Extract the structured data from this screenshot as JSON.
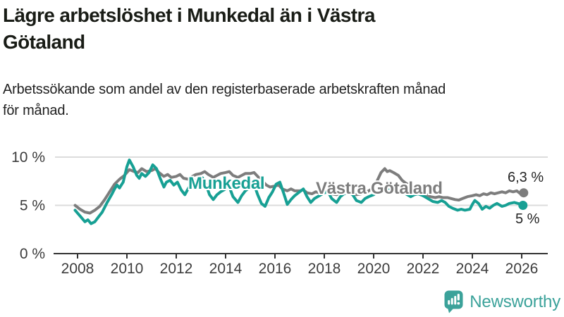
{
  "header": {
    "title_line1": "Lägre arbetslöshet i Munkedal än i Västra",
    "title_line2": "Götaland",
    "subtitle_line1": "Arbetssökande som andel av den registerbaserade arbetskraften månad",
    "subtitle_line2": "för månad."
  },
  "colors": {
    "munkedal": "#17a094",
    "vastra_gotaland": "#7d7d7d",
    "grid": "#dcdcdc",
    "axis": "#333333",
    "tick_text": "#3c3c3c",
    "title_text": "#191c16",
    "logo_teal": "#3ba29a",
    "background": "#ffffff"
  },
  "chart_data": {
    "type": "line",
    "grid": "horizontal",
    "legend": "inline-labels",
    "x_axis": {
      "ticks": [
        2008,
        2010,
        2012,
        2014,
        2016,
        2018,
        2020,
        2022,
        2024,
        2026
      ],
      "range": [
        2007.1,
        2027.1
      ]
    },
    "y_axis": {
      "ticks": [
        0,
        5,
        10
      ],
      "tick_labels": [
        "0 %",
        "5 %",
        "10 %"
      ],
      "range": [
        0,
        10.7
      ],
      "unit": "%"
    },
    "series": [
      {
        "id": "vastra-gotaland",
        "name": "Västra Götaland",
        "color": "#7d7d7d",
        "end_label": "6,3 %",
        "points": [
          [
            2007.9,
            5.0
          ],
          [
            2008.1,
            4.6
          ],
          [
            2008.3,
            4.3
          ],
          [
            2008.5,
            4.2
          ],
          [
            2008.7,
            4.5
          ],
          [
            2008.9,
            4.9
          ],
          [
            2009.1,
            5.6
          ],
          [
            2009.3,
            6.4
          ],
          [
            2009.5,
            7.2
          ],
          [
            2009.7,
            7.7
          ],
          [
            2009.9,
            8.1
          ],
          [
            2010.1,
            8.7
          ],
          [
            2010.3,
            8.5
          ],
          [
            2010.45,
            8.4
          ],
          [
            2010.6,
            8.8
          ],
          [
            2010.8,
            8.5
          ],
          [
            2011.0,
            8.6
          ],
          [
            2011.15,
            8.8
          ],
          [
            2011.3,
            8.4
          ],
          [
            2011.5,
            8.0
          ],
          [
            2011.65,
            8.2
          ],
          [
            2011.8,
            7.9
          ],
          [
            2012.0,
            8.0
          ],
          [
            2012.15,
            8.2
          ],
          [
            2012.3,
            7.8
          ],
          [
            2012.5,
            7.7
          ],
          [
            2012.65,
            8.0
          ],
          [
            2012.8,
            8.2
          ],
          [
            2013.0,
            8.3
          ],
          [
            2013.15,
            8.5
          ],
          [
            2013.3,
            8.2
          ],
          [
            2013.5,
            7.9
          ],
          [
            2013.65,
            8.1
          ],
          [
            2013.8,
            8.3
          ],
          [
            2014.0,
            8.4
          ],
          [
            2014.15,
            8.5
          ],
          [
            2014.3,
            8.1
          ],
          [
            2014.5,
            7.9
          ],
          [
            2014.65,
            8.1
          ],
          [
            2014.8,
            8.3
          ],
          [
            2015.0,
            8.3
          ],
          [
            2015.15,
            8.4
          ],
          [
            2015.3,
            8.0
          ],
          [
            2015.5,
            7.5
          ],
          [
            2015.65,
            7.1
          ],
          [
            2015.8,
            6.9
          ],
          [
            2016.0,
            7.0
          ],
          [
            2016.15,
            7.1
          ],
          [
            2016.3,
            6.7
          ],
          [
            2016.5,
            6.5
          ],
          [
            2016.65,
            6.7
          ],
          [
            2016.8,
            6.5
          ],
          [
            2017.0,
            6.5
          ],
          [
            2017.15,
            6.6
          ],
          [
            2017.3,
            6.3
          ],
          [
            2017.5,
            6.2
          ],
          [
            2017.65,
            6.4
          ],
          [
            2017.8,
            6.3
          ],
          [
            2018.0,
            6.4
          ],
          [
            2018.15,
            6.5
          ],
          [
            2018.3,
            6.2
          ],
          [
            2018.5,
            6.1
          ],
          [
            2018.65,
            6.3
          ],
          [
            2018.8,
            6.4
          ],
          [
            2019.0,
            6.4
          ],
          [
            2019.15,
            6.2
          ],
          [
            2019.3,
            6.1
          ],
          [
            2019.5,
            6.2
          ],
          [
            2019.65,
            6.3
          ],
          [
            2019.8,
            6.5
          ],
          [
            2020.0,
            6.8
          ],
          [
            2020.15,
            7.6
          ],
          [
            2020.3,
            8.4
          ],
          [
            2020.45,
            8.8
          ],
          [
            2020.55,
            8.5
          ],
          [
            2020.65,
            8.6
          ],
          [
            2020.8,
            8.4
          ],
          [
            2021.0,
            8.1
          ],
          [
            2021.15,
            7.6
          ],
          [
            2021.3,
            7.3
          ],
          [
            2021.5,
            7.0
          ],
          [
            2021.65,
            6.7
          ],
          [
            2021.8,
            6.3
          ],
          [
            2022.0,
            6.0
          ],
          [
            2022.15,
            6.1
          ],
          [
            2022.3,
            5.9
          ],
          [
            2022.5,
            5.8
          ],
          [
            2022.65,
            5.9
          ],
          [
            2022.8,
            5.8
          ],
          [
            2023.0,
            5.8
          ],
          [
            2023.15,
            5.7
          ],
          [
            2023.3,
            5.6
          ],
          [
            2023.45,
            5.55
          ],
          [
            2023.6,
            5.7
          ],
          [
            2023.8,
            5.9
          ],
          [
            2024.0,
            6.0
          ],
          [
            2024.15,
            6.1
          ],
          [
            2024.3,
            6.0
          ],
          [
            2024.45,
            6.2
          ],
          [
            2024.6,
            6.1
          ],
          [
            2024.75,
            6.3
          ],
          [
            2024.9,
            6.2
          ],
          [
            2025.05,
            6.3
          ],
          [
            2025.2,
            6.4
          ],
          [
            2025.35,
            6.3
          ],
          [
            2025.5,
            6.5
          ],
          [
            2025.65,
            6.4
          ],
          [
            2025.8,
            6.5
          ],
          [
            2025.95,
            6.2
          ],
          [
            2026.08,
            6.3
          ]
        ]
      },
      {
        "id": "munkedal",
        "name": "Munkedal",
        "color": "#17a094",
        "end_label": "5 %",
        "points": [
          [
            2007.9,
            4.5
          ],
          [
            2008.1,
            3.9
          ],
          [
            2008.3,
            3.3
          ],
          [
            2008.42,
            3.5
          ],
          [
            2008.55,
            3.1
          ],
          [
            2008.7,
            3.3
          ],
          [
            2008.85,
            3.8
          ],
          [
            2009.0,
            4.3
          ],
          [
            2009.2,
            5.3
          ],
          [
            2009.4,
            6.2
          ],
          [
            2009.5,
            6.7
          ],
          [
            2009.6,
            7.1
          ],
          [
            2009.7,
            6.8
          ],
          [
            2009.85,
            7.4
          ],
          [
            2010.0,
            9.0
          ],
          [
            2010.1,
            9.7
          ],
          [
            2010.25,
            9.0
          ],
          [
            2010.4,
            8.1
          ],
          [
            2010.5,
            7.8
          ],
          [
            2010.6,
            8.3
          ],
          [
            2010.75,
            8.0
          ],
          [
            2010.9,
            8.4
          ],
          [
            2011.05,
            9.2
          ],
          [
            2011.2,
            8.8
          ],
          [
            2011.35,
            7.8
          ],
          [
            2011.5,
            6.9
          ],
          [
            2011.6,
            7.4
          ],
          [
            2011.75,
            7.6
          ],
          [
            2011.9,
            7.1
          ],
          [
            2012.05,
            7.4
          ],
          [
            2012.2,
            6.6
          ],
          [
            2012.35,
            6.1
          ],
          [
            2012.5,
            6.8
          ],
          [
            2012.6,
            7.3
          ],
          [
            2012.75,
            7.6
          ],
          [
            2012.9,
            7.2
          ],
          [
            2013.05,
            7.9
          ],
          [
            2013.2,
            7.2
          ],
          [
            2013.35,
            6.1
          ],
          [
            2013.5,
            5.6
          ],
          [
            2013.65,
            6.1
          ],
          [
            2013.8,
            6.4
          ],
          [
            2014.0,
            6.7
          ],
          [
            2014.15,
            6.9
          ],
          [
            2014.3,
            5.9
          ],
          [
            2014.5,
            5.3
          ],
          [
            2014.65,
            6.0
          ],
          [
            2014.8,
            6.5
          ],
          [
            2015.0,
            6.9
          ],
          [
            2015.15,
            7.2
          ],
          [
            2015.3,
            6.1
          ],
          [
            2015.45,
            5.2
          ],
          [
            2015.6,
            4.9
          ],
          [
            2015.75,
            5.8
          ],
          [
            2015.9,
            6.4
          ],
          [
            2016.05,
            7.2
          ],
          [
            2016.2,
            7.4
          ],
          [
            2016.35,
            6.3
          ],
          [
            2016.5,
            5.1
          ],
          [
            2016.65,
            5.6
          ],
          [
            2016.8,
            6.0
          ],
          [
            2017.0,
            6.4
          ],
          [
            2017.15,
            6.7
          ],
          [
            2017.3,
            5.9
          ],
          [
            2017.45,
            5.3
          ],
          [
            2017.6,
            5.7
          ],
          [
            2017.8,
            6.0
          ],
          [
            2018.0,
            6.3
          ],
          [
            2018.15,
            6.4
          ],
          [
            2018.3,
            5.7
          ],
          [
            2018.5,
            5.3
          ],
          [
            2018.65,
            5.9
          ],
          [
            2018.8,
            6.2
          ],
          [
            2019.0,
            6.3
          ],
          [
            2019.15,
            6.1
          ],
          [
            2019.3,
            5.5
          ],
          [
            2019.5,
            5.3
          ],
          [
            2019.65,
            5.7
          ],
          [
            2019.8,
            5.9
          ],
          [
            2020.0,
            6.1
          ],
          [
            2020.2,
            6.5
          ],
          [
            2020.4,
            6.9
          ],
          [
            2020.6,
            6.6
          ],
          [
            2020.8,
            6.5
          ],
          [
            2021.0,
            6.3
          ],
          [
            2021.15,
            6.4
          ],
          [
            2021.3,
            6.2
          ],
          [
            2021.5,
            5.9
          ],
          [
            2021.65,
            6.1
          ],
          [
            2021.8,
            6.2
          ],
          [
            2022.0,
            6.0
          ],
          [
            2022.2,
            5.7
          ],
          [
            2022.4,
            5.4
          ],
          [
            2022.6,
            5.3
          ],
          [
            2022.75,
            5.5
          ],
          [
            2022.9,
            5.3
          ],
          [
            2023.05,
            4.9
          ],
          [
            2023.2,
            4.7
          ],
          [
            2023.4,
            4.5
          ],
          [
            2023.55,
            4.6
          ],
          [
            2023.7,
            4.5
          ],
          [
            2023.9,
            4.6
          ],
          [
            2024.0,
            5.1
          ],
          [
            2024.1,
            5.5
          ],
          [
            2024.25,
            5.2
          ],
          [
            2024.4,
            4.6
          ],
          [
            2024.55,
            4.9
          ],
          [
            2024.7,
            4.7
          ],
          [
            2024.85,
            5.0
          ],
          [
            2025.0,
            5.2
          ],
          [
            2025.2,
            4.9
          ],
          [
            2025.35,
            5.0
          ],
          [
            2025.5,
            5.2
          ],
          [
            2025.7,
            5.3
          ],
          [
            2025.85,
            5.2
          ],
          [
            2026.05,
            5.0
          ]
        ]
      }
    ]
  },
  "footer": {
    "brand": "Newsworthy"
  }
}
